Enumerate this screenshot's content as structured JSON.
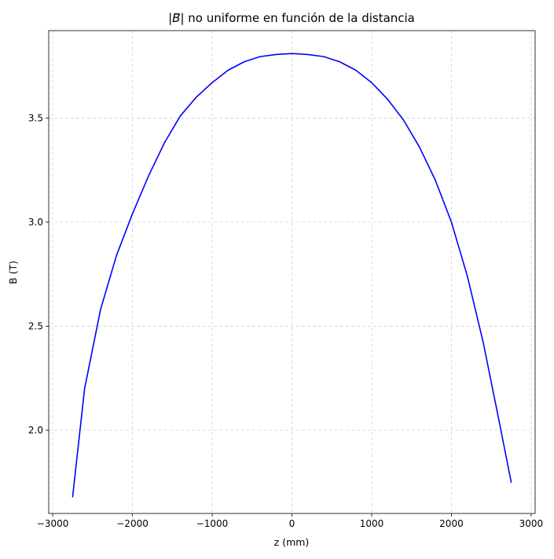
{
  "chart_data": {
    "type": "line",
    "title": "|B⃗| no uniforme en función de la distancia",
    "title_parts": {
      "left_bar": "|",
      "vector_symbol": "B",
      "arrow": "⃗",
      "rest": "| no uniforme en función de la distancia"
    },
    "xlabel": "z (mm)",
    "ylabel": "B (T)",
    "xlim": [
      -3050,
      3050
    ],
    "ylim": [
      1.6,
      3.92
    ],
    "xticks": [
      -3000,
      -2000,
      -1000,
      0,
      1000,
      2000,
      3000
    ],
    "xtick_labels": [
      "−3000",
      "−2000",
      "−1000",
      "0",
      "1000",
      "2000",
      "3000"
    ],
    "yticks": [
      2.0,
      2.5,
      3.0,
      3.5
    ],
    "ytick_labels": [
      "2.0",
      "2.5",
      "3.0",
      "3.5"
    ],
    "grid": true,
    "series": [
      {
        "color": "#0000ff",
        "x": [
          -2750,
          -2600,
          -2400,
          -2200,
          -2000,
          -1800,
          -1600,
          -1400,
          -1200,
          -1000,
          -800,
          -600,
          -400,
          -200,
          0,
          200,
          400,
          600,
          800,
          1000,
          1200,
          1400,
          1600,
          1800,
          2000,
          2200,
          2400,
          2600,
          2750
        ],
        "y": [
          1.68,
          2.2,
          2.58,
          2.84,
          3.04,
          3.22,
          3.38,
          3.51,
          3.6,
          3.67,
          3.73,
          3.77,
          3.795,
          3.805,
          3.81,
          3.805,
          3.795,
          3.77,
          3.73,
          3.67,
          3.59,
          3.49,
          3.36,
          3.2,
          3.0,
          2.74,
          2.42,
          2.04,
          1.75
        ]
      }
    ]
  }
}
